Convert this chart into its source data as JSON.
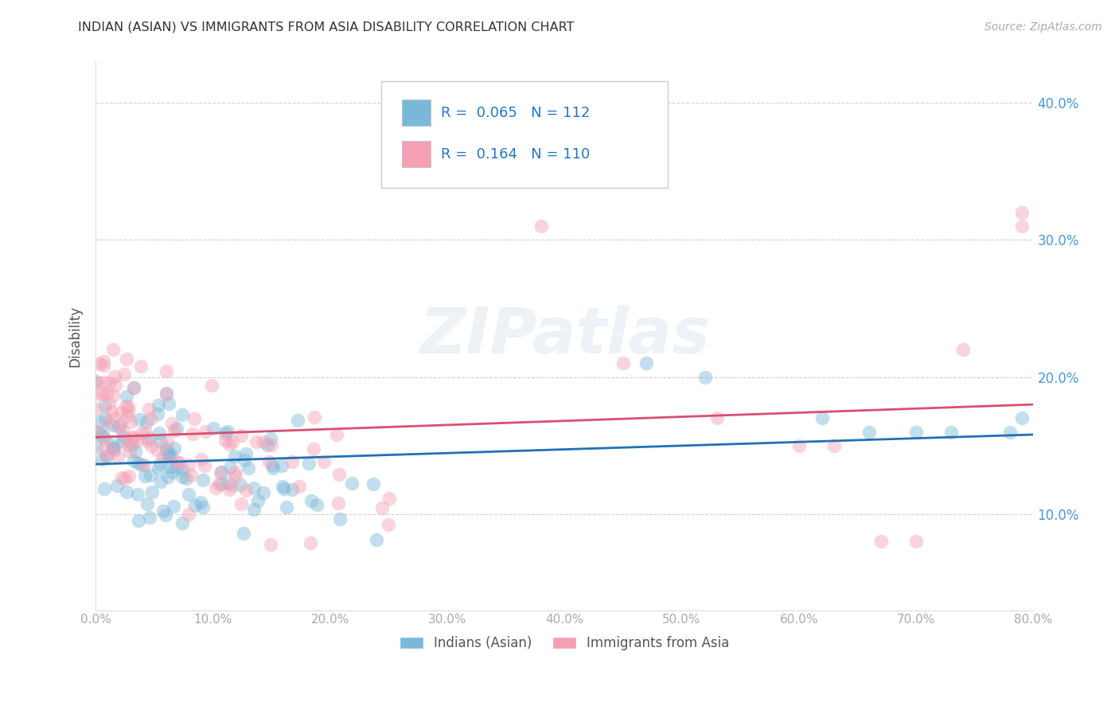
{
  "title": "INDIAN (ASIAN) VS IMMIGRANTS FROM ASIA DISABILITY CORRELATION CHART",
  "source": "Source: ZipAtlas.com",
  "ylabel": "Disability",
  "watermark": "ZIPatlas",
  "xlim": [
    0.0,
    0.8
  ],
  "ylim": [
    0.03,
    0.43
  ],
  "xticks": [
    0.0,
    0.1,
    0.2,
    0.3,
    0.4,
    0.5,
    0.6,
    0.7,
    0.8
  ],
  "xticklabels": [
    "0.0%",
    "10.0%",
    "20.0%",
    "30.0%",
    "40.0%",
    "50.0%",
    "60.0%",
    "70.0%",
    "80.0%"
  ],
  "yticks": [
    0.1,
    0.2,
    0.3,
    0.4
  ],
  "yticklabels": [
    "10.0%",
    "20.0%",
    "30.0%",
    "40.0%"
  ],
  "blue_color": "#7ab8d9",
  "pink_color": "#f4a0b5",
  "blue_line_color": "#2171b5",
  "pink_line_color": "#d94f70",
  "R_blue": 0.065,
  "N_blue": 112,
  "R_pink": 0.164,
  "N_pink": 110,
  "legend_label_blue": "Indians (Asian)",
  "legend_label_pink": "Immigrants from Asia",
  "title_color": "#333333",
  "axis_label_color": "#555555",
  "tick_color": "#aaaaaa",
  "grid_color": "#cccccc",
  "background_color": "#ffffff"
}
